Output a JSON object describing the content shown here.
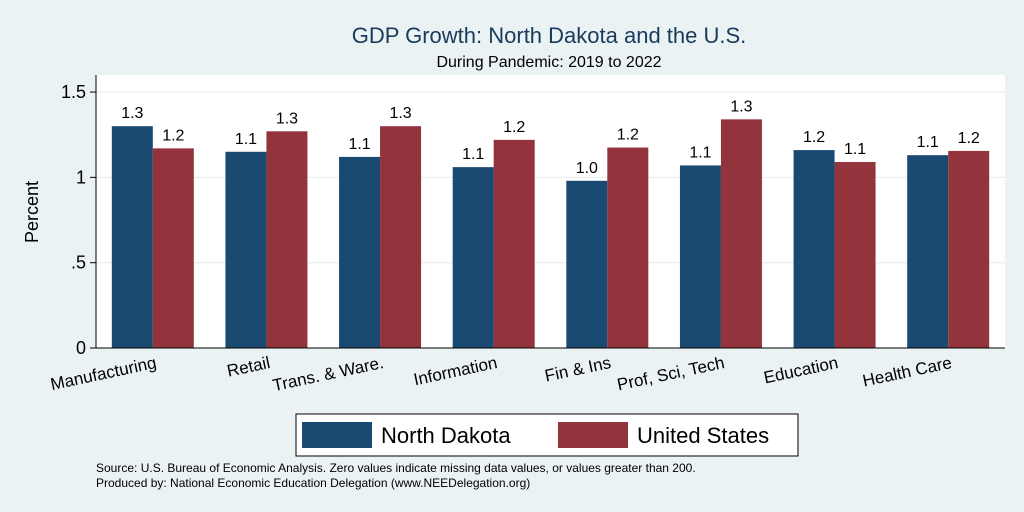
{
  "colors": {
    "north_dakota": "#1a4a72",
    "united_states": "#93343c",
    "background": "#eaf2f3",
    "plot_background": "#ffffff"
  },
  "chart_data": {
    "type": "bar",
    "title": "GDP Growth: North Dakota and the U.S.",
    "subtitle": "During Pandemic: 2019 to 2022",
    "ylabel": "Percent",
    "xlabel": "",
    "ylim": [
      0,
      1.6
    ],
    "yticks": [
      {
        "value": 0,
        "label": "0"
      },
      {
        "value": 0.5,
        "label": ".5"
      },
      {
        "value": 1,
        "label": "1"
      },
      {
        "value": 1.5,
        "label": "1.5"
      }
    ],
    "grid": true,
    "legend_position": "bottom",
    "categories": [
      "Manufacturing",
      "Retail",
      "Trans. & Ware.",
      "Information",
      "Fin & Ins",
      "Prof, Sci, Tech",
      "Education",
      "Health Care"
    ],
    "series": [
      {
        "name": "North Dakota",
        "values": [
          1.3,
          1.15,
          1.12,
          1.06,
          0.98,
          1.07,
          1.16,
          1.13
        ],
        "labels": [
          "1.3",
          "1.1",
          "1.1",
          "1.1",
          "1.0",
          "1.1",
          "1.2",
          "1.1"
        ]
      },
      {
        "name": "United States",
        "values": [
          1.17,
          1.27,
          1.3,
          1.22,
          1.175,
          1.34,
          1.09,
          1.155
        ],
        "labels": [
          "1.2",
          "1.3",
          "1.3",
          "1.2",
          "1.2",
          "1.3",
          "1.1",
          "1.2"
        ]
      }
    ]
  },
  "notes": {
    "source": "Source: U.S. Bureau of Economic Analysis. Zero values indicate missing data values, or values greater than 200.",
    "produced_by": "Produced by: National Economic Education Delegation (www.NEEDelegation.org)"
  }
}
